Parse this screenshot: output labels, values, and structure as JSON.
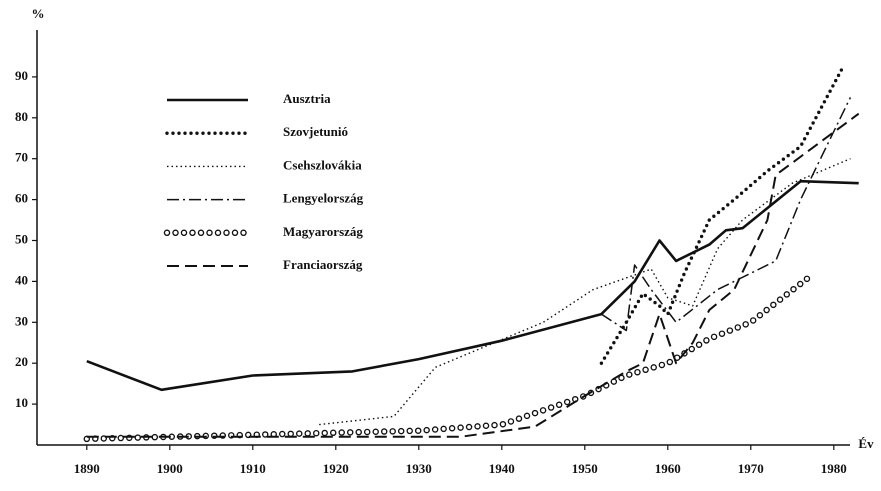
{
  "chart_data": {
    "type": "line",
    "y_label": "%",
    "x_label": "Év",
    "xlim": [
      1884,
      1984
    ],
    "ylim": [
      0,
      100
    ],
    "xticks": [
      1890,
      1900,
      1910,
      1920,
      1930,
      1940,
      1950,
      1960,
      1970,
      1980
    ],
    "yticks": [
      10,
      20,
      30,
      40,
      50,
      60,
      70,
      80,
      90
    ],
    "legend": "upper left",
    "series": [
      {
        "name": "Ausztria",
        "color": "#111111",
        "style": "solid",
        "x": [
          1890,
          1899,
          1910,
          1922,
          1930,
          1940,
          1952,
          1956,
          1959,
          1961,
          1965,
          1967,
          1969,
          1976,
          1983
        ],
        "values": [
          20.5,
          13.5,
          17,
          18,
          21,
          25.5,
          32,
          40,
          50,
          45,
          49,
          52.5,
          53,
          64.5,
          64
        ]
      },
      {
        "name": "Szovjetunió",
        "color": "#111111",
        "style": "dotted-heavy",
        "x": [
          1952,
          1955,
          1957,
          1959,
          1960,
          1962,
          1965,
          1968,
          1972,
          1976,
          1981
        ],
        "values": [
          20,
          30,
          37,
          34,
          32,
          42,
          55,
          60,
          67,
          73,
          92
        ]
      },
      {
        "name": "Csehszlovákia",
        "color": "#111111",
        "style": "dotted",
        "x": [
          1918,
          1927,
          1932,
          1945,
          1951,
          1958,
          1960,
          1963,
          1966,
          1969,
          1975,
          1982
        ],
        "values": [
          5,
          7,
          19,
          30,
          38,
          43,
          36,
          34,
          48,
          55,
          64,
          70
        ]
      },
      {
        "name": "Lengyelország",
        "color": "#111111",
        "style": "dash-dot",
        "x": [
          1952,
          1955,
          1956,
          1958,
          1961,
          1966,
          1973,
          1976,
          1982
        ],
        "values": [
          32,
          28,
          44,
          38,
          30,
          38,
          45,
          60,
          85
        ]
      },
      {
        "name": "Magyarország",
        "color": "#111111",
        "style": "circles",
        "x": [
          1890,
          1900,
          1910,
          1920,
          1930,
          1940,
          1950,
          1955,
          1960,
          1965,
          1970,
          1977
        ],
        "values": [
          1.5,
          2,
          2.5,
          3,
          3.5,
          5,
          12,
          17,
          20,
          26,
          30,
          41
        ]
      },
      {
        "name": "Franciaország",
        "color": "#111111",
        "style": "dashed",
        "x": [
          1890,
          1910,
          1935,
          1944,
          1950,
          1955,
          1957,
          1959,
          1961,
          1963,
          1965,
          1968,
          1972,
          1973,
          1983
        ],
        "values": [
          2,
          2,
          2,
          4.5,
          12,
          18,
          20,
          32,
          20,
          25,
          33,
          38,
          55,
          66,
          81
        ]
      }
    ]
  }
}
